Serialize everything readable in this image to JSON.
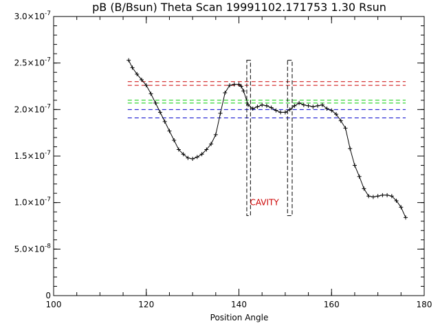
{
  "chart_data": {
    "type": "scatter",
    "title": "pB (B/Bsun) Theta Scan 19991102.171753 1.30 Rsun",
    "xlabel": "Position Angle",
    "ylabel": "",
    "xlim": [
      100,
      180
    ],
    "ylim": [
      0,
      3e-07
    ],
    "x_ticks": [
      {
        "value": 100,
        "label": "100"
      },
      {
        "value": 120,
        "label": "120"
      },
      {
        "value": 140,
        "label": "140"
      },
      {
        "value": 160,
        "label": "160"
      },
      {
        "value": 180,
        "label": "180"
      }
    ],
    "x_minor_step": 5,
    "y_ticks": [
      {
        "value": 0,
        "label": "0"
      },
      {
        "value": 5e-08,
        "mantissa": "5.0",
        "exponent": "-8"
      },
      {
        "value": 1e-07,
        "mantissa": "1.0",
        "exponent": "-7"
      },
      {
        "value": 1.5e-07,
        "mantissa": "1.5",
        "exponent": "-7"
      },
      {
        "value": 2e-07,
        "mantissa": "2.0",
        "exponent": "-7"
      },
      {
        "value": 2.5e-07,
        "mantissa": "2.5",
        "exponent": "-7"
      },
      {
        "value": 3e-07,
        "mantissa": "3.0",
        "exponent": "-7"
      }
    ],
    "y_minor_step": 1e-08,
    "grid": false,
    "series": [
      {
        "color": "#000000",
        "marker": "plus",
        "x": [
          116.2,
          117.0,
          118.0,
          119.0,
          120.0,
          121.0,
          122.0,
          123.0,
          124.0,
          125.0,
          126.0,
          127.0,
          128.0,
          129.0,
          130.0,
          131.0,
          132.0,
          133.0,
          134.0,
          135.0,
          136.0,
          137.0,
          138.0,
          139.0,
          140.0,
          140.5,
          141.0,
          142.0,
          143.0,
          144.0,
          145.0,
          146.0,
          147.0,
          148.0,
          149.0,
          150.0,
          151.0,
          152.0,
          153.0,
          154.0,
          155.0,
          156.0,
          157.0,
          158.0,
          159.0,
          160.0,
          161.0,
          162.0,
          163.0,
          164.0,
          165.0,
          166.0,
          167.0,
          168.0,
          169.0,
          170.0,
          171.0,
          172.0,
          173.0,
          174.0,
          175.0,
          176.0
        ],
        "y": [
          2.53e-07,
          2.45e-07,
          2.38e-07,
          2.32e-07,
          2.26e-07,
          2.17e-07,
          2.07e-07,
          1.97e-07,
          1.87e-07,
          1.77e-07,
          1.67e-07,
          1.57e-07,
          1.52e-07,
          1.48e-07,
          1.47e-07,
          1.49e-07,
          1.52e-07,
          1.57e-07,
          1.63e-07,
          1.73e-07,
          1.96e-07,
          2.18e-07,
          2.26e-07,
          2.27e-07,
          2.27e-07,
          2.25e-07,
          2.2e-07,
          2.05e-07,
          2.01e-07,
          2.03e-07,
          2.05e-07,
          2.04e-07,
          2.02e-07,
          1.99e-07,
          1.97e-07,
          1.97e-07,
          2e-07,
          2.04e-07,
          2.07e-07,
          2.05e-07,
          2.04e-07,
          2.03e-07,
          2.04e-07,
          2.05e-07,
          2.01e-07,
          1.99e-07,
          1.95e-07,
          1.88e-07,
          1.8e-07,
          1.58e-07,
          1.4e-07,
          1.28e-07,
          1.15e-07,
          1.07e-07,
          1.06e-07,
          1.07e-07,
          1.08e-07,
          1.08e-07,
          1.07e-07,
          1.02e-07,
          9.5e-08,
          8.4e-08
        ]
      }
    ],
    "reference_lines": [
      {
        "y": 2.3e-07,
        "color": "#cc0000",
        "style": "dashed"
      },
      {
        "y": 2.26e-07,
        "color": "#cc0000",
        "style": "dashed"
      },
      {
        "y": 2.1e-07,
        "color": "#00cc00",
        "style": "dashed"
      },
      {
        "y": 2.07e-07,
        "color": "#00cc00",
        "style": "dashed"
      },
      {
        "y": 2e-07,
        "color": "#0000cc",
        "style": "dashed"
      },
      {
        "y": 1.91e-07,
        "color": "#0000cc",
        "style": "dashed"
      }
    ],
    "reference_x_range": [
      116,
      176
    ],
    "boxes": [
      {
        "x0": 141.7,
        "x1": 142.5,
        "y0": 8.6e-08,
        "y1": 2.53e-07
      },
      {
        "x0": 150.5,
        "x1": 151.5,
        "y0": 8.6e-08,
        "y1": 2.53e-07
      }
    ],
    "annotations": [
      {
        "text": "CAVITY",
        "x": 145.5,
        "y": 9.7e-08,
        "color": "#cc0000"
      }
    ]
  }
}
